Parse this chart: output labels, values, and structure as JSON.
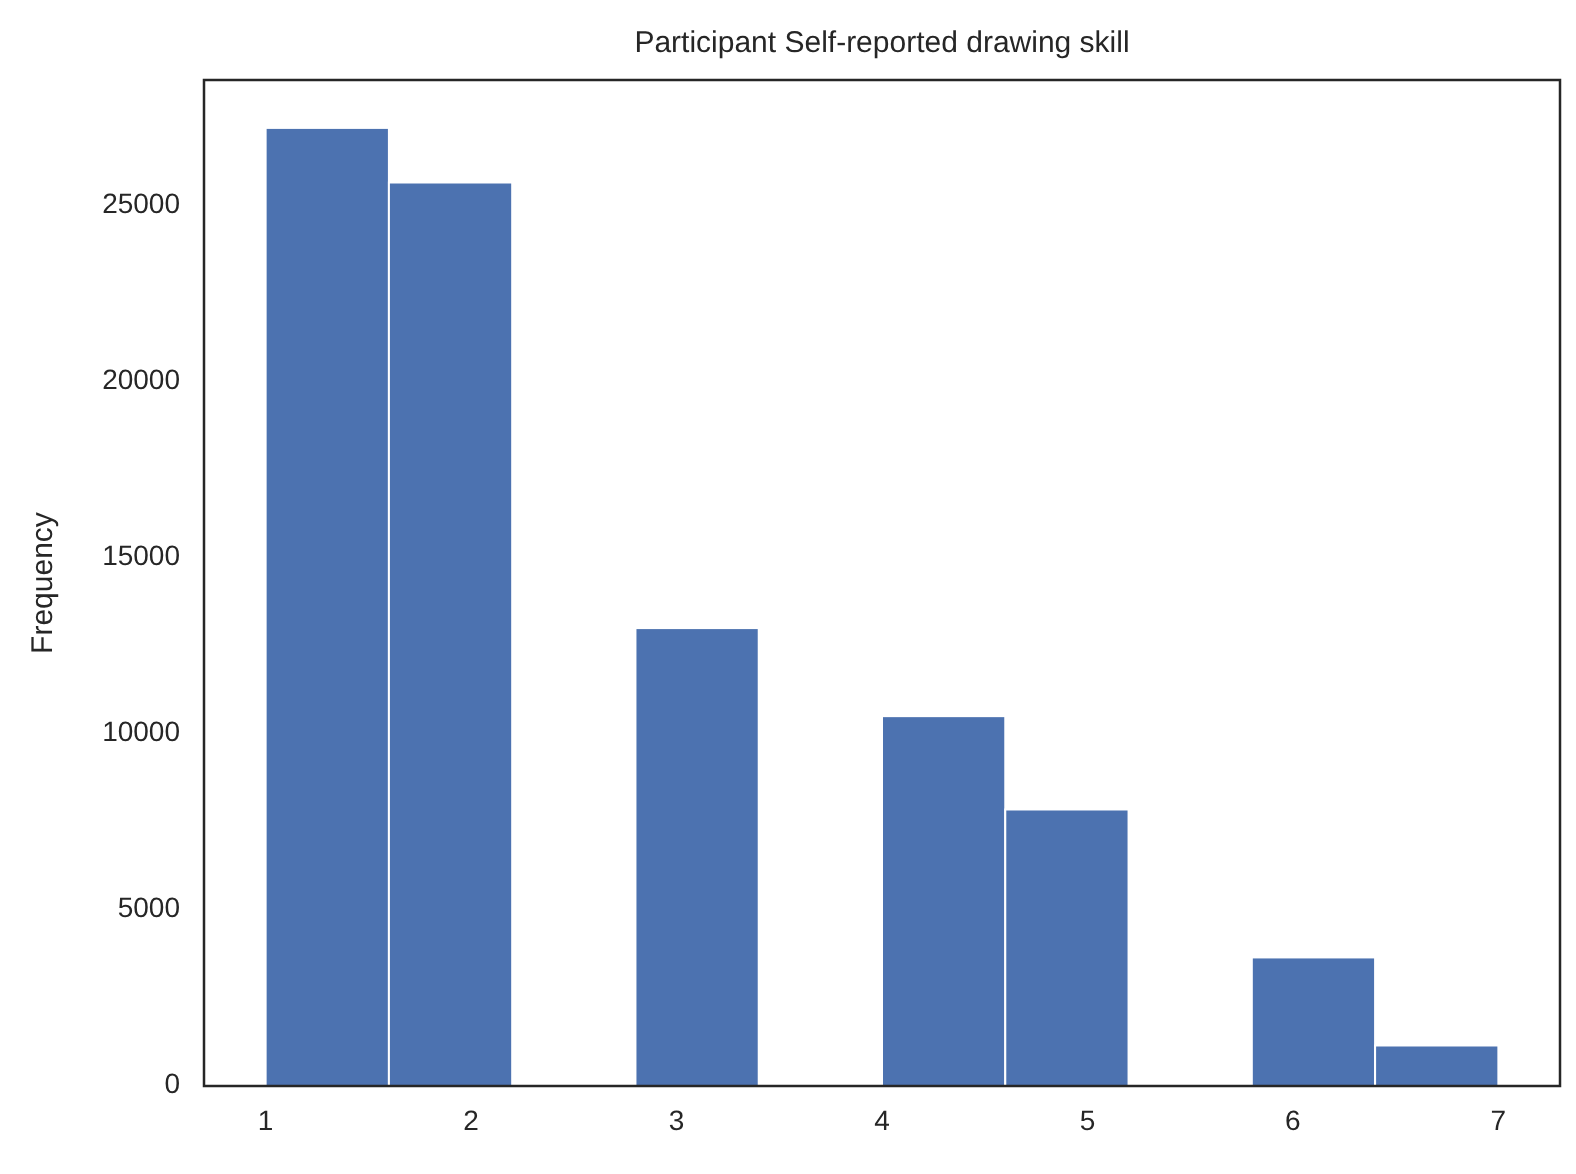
{
  "chart_data": {
    "type": "histogram",
    "title": "Participant Self-reported drawing skill",
    "ylabel": "Frequency",
    "bins": [
      1,
      1.6,
      2.2,
      2.8,
      3.4,
      4,
      4.6,
      5.2,
      5.8,
      6.4,
      7
    ],
    "values": [
      27200,
      25650,
      0,
      13000,
      0,
      10500,
      7850,
      0,
      3650,
      1150
    ],
    "color": "#4c72b0",
    "xlim": [
      0.7,
      7.3
    ],
    "xticks": [
      1,
      2,
      3,
      4,
      5,
      6,
      7
    ],
    "ylim": [
      0,
      28560
    ],
    "yticks": [
      0,
      5000,
      10000,
      15000,
      20000,
      25000
    ],
    "grid": false
  }
}
